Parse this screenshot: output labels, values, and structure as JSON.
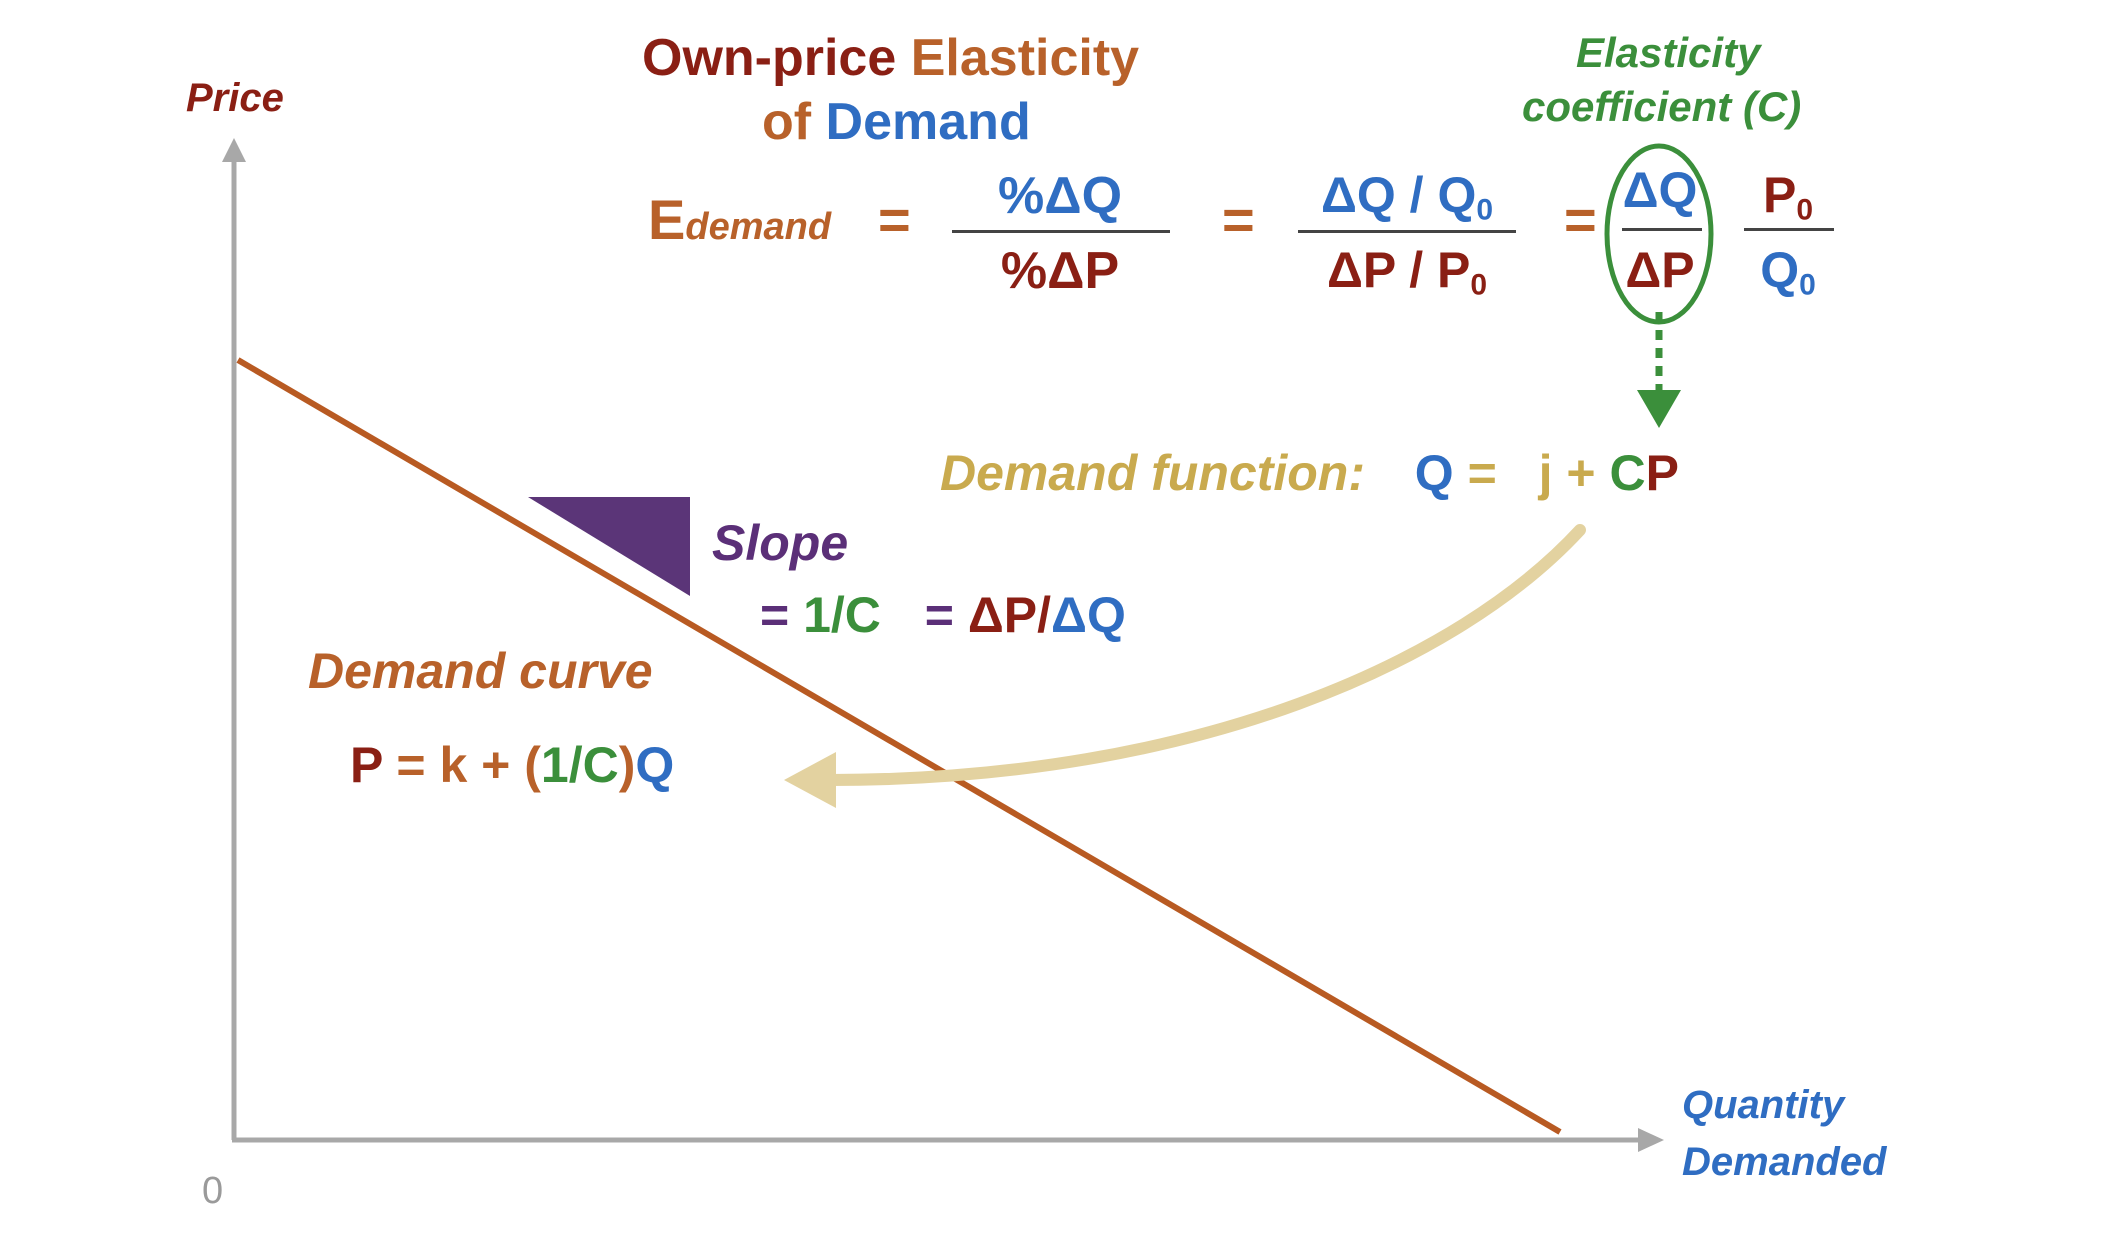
{
  "axes": {
    "y_label": "Price",
    "x_label_line1": "Quantity",
    "x_label_line2": "Demanded",
    "origin_label": "0"
  },
  "title": {
    "part1": "Own-price",
    "part2": "Elasticity",
    "part3": "of",
    "part4": "Demand"
  },
  "elasticity_coefficient_label": {
    "line1": "Elasticity",
    "line2": "coefficient (C)"
  },
  "equation": {
    "lhs_E": "E",
    "lhs_sub": "demand",
    "eq1": "=",
    "frac1_num": "%ΔQ",
    "frac1_den": "%ΔP",
    "eq2": "=",
    "frac2_num_a": "ΔQ / Q",
    "frac2_num_sub": "0",
    "frac2_den_a": "ΔP / P",
    "frac2_den_sub": "0",
    "eq3": "=",
    "frac3_num": "ΔQ",
    "frac3_den": "ΔP",
    "frac4_num_a": "P",
    "frac4_num_sub": "0",
    "frac4_den_a": "Q",
    "frac4_den_sub": "0"
  },
  "demand_function": {
    "label": "Demand function:",
    "Q": "Q",
    "eq": "=",
    "j_plus": "j +",
    "C": "C",
    "P": "P"
  },
  "slope": {
    "label": "Slope",
    "eq1": "=",
    "one_over_C": "1/C",
    "eq2": "=",
    "dP": "ΔP/",
    "dQ": "ΔQ"
  },
  "demand_curve": {
    "label": "Demand curve",
    "P": "P",
    "eq_k_plus": "= k +",
    "paren_open": "(",
    "one_over_C": "1/C",
    "paren_close": ")",
    "Q": "Q"
  },
  "colors": {
    "dark_red": "#8a1f14",
    "orange": "#b8612a",
    "blue": "#2f6dc2",
    "green": "#3b8f3b",
    "gold": "#c9aa4e",
    "purple": "#5b2f78",
    "axis_gray": "#a8a8a8",
    "arrow_tan": "#e3d2a0"
  }
}
